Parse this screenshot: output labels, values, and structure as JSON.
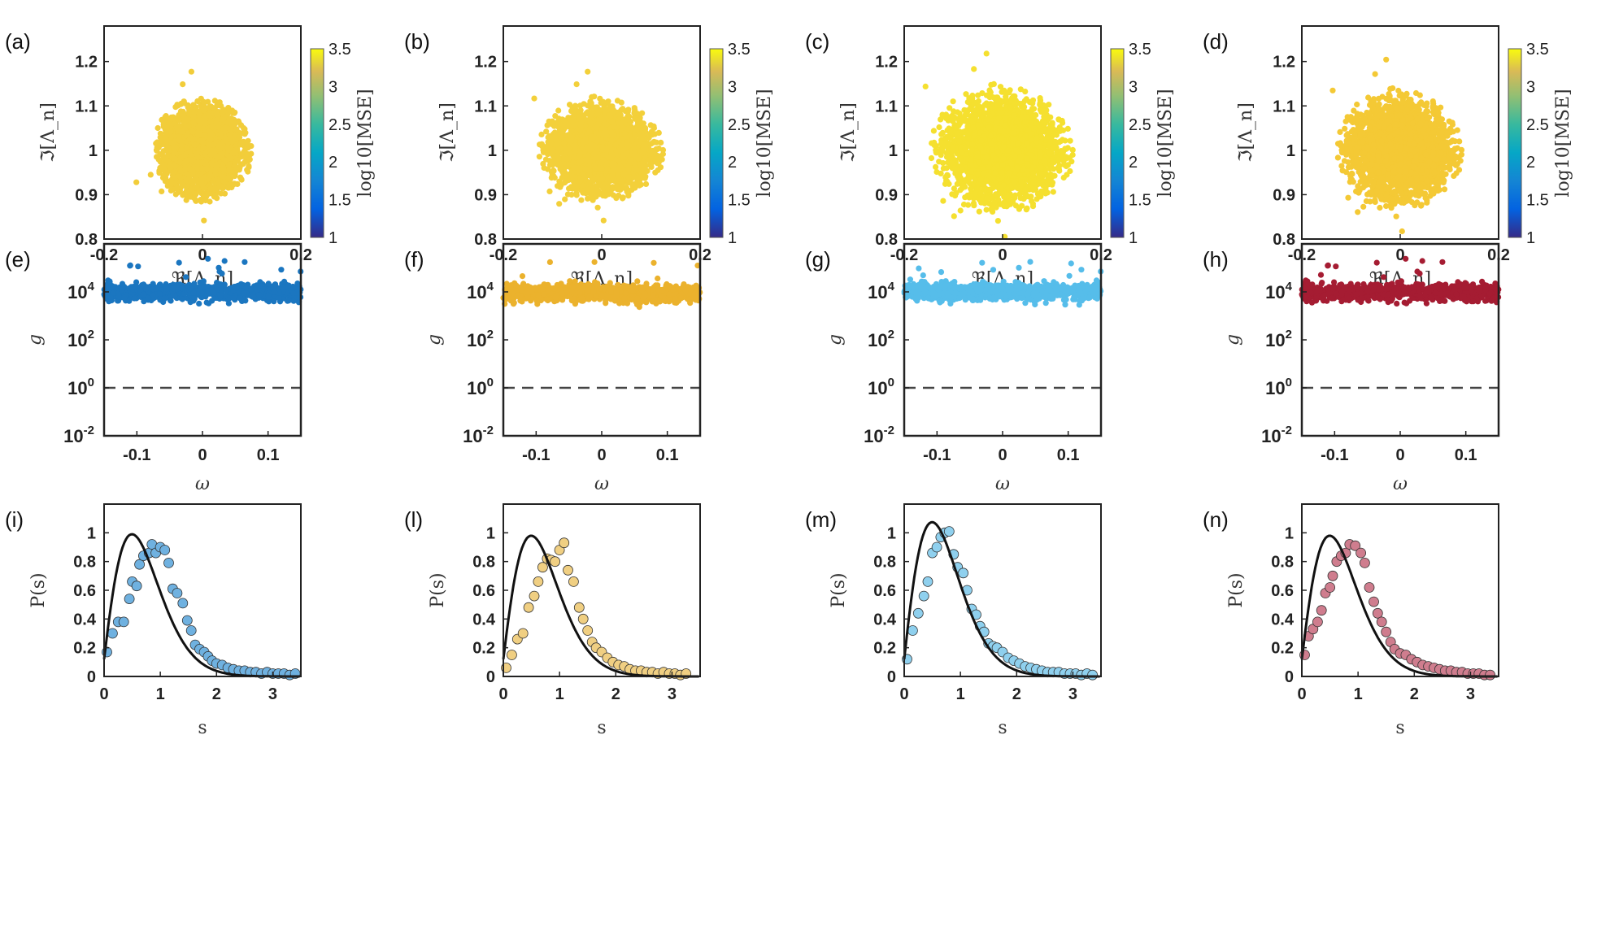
{
  "chart_data": [
    {
      "id": "a",
      "type": "scatter",
      "panel_label": "(a)",
      "xlabel": "ℜ[Λ_n]",
      "ylabel": "ℑ[Λ_n]",
      "xlim": [
        -0.2,
        0.2
      ],
      "ylim": [
        0.8,
        1.28
      ],
      "xticks": [
        "-0.2",
        "0",
        "0.2"
      ],
      "yticks": [
        "0.8",
        "0.9",
        "1",
        "1.1",
        "1.2"
      ],
      "cloud": {
        "cx": 0.0,
        "cy": 1.0,
        "rx": 0.11,
        "ry": 0.13,
        "color": "#f2cd3a"
      },
      "colorbar": {
        "label": "log10[MSE]",
        "range": [
          1,
          3.5
        ],
        "ticks": [
          "1",
          "1.5",
          "2",
          "2.5",
          "3",
          "3.5"
        ]
      }
    },
    {
      "id": "b",
      "type": "scatter",
      "panel_label": "(b)",
      "xlabel": "ℜ[Λ_n]",
      "ylabel": "ℑ[Λ_n]",
      "xlim": [
        -0.2,
        0.2
      ],
      "ylim": [
        0.8,
        1.28
      ],
      "xticks": [
        "-0.2",
        "0",
        "0.2"
      ],
      "yticks": [
        "0.8",
        "0.9",
        "1",
        "1.1",
        "1.2"
      ],
      "cloud": {
        "cx": 0.0,
        "cy": 1.0,
        "rx": 0.14,
        "ry": 0.13,
        "color": "#f3d03a"
      },
      "colorbar": {
        "label": "log10[MSE]",
        "range": [
          1,
          3.5
        ],
        "ticks": [
          "1",
          "1.5",
          "2",
          "2.5",
          "3",
          "3.5"
        ]
      }
    },
    {
      "id": "c",
      "type": "scatter",
      "panel_label": "(c)",
      "xlabel": "ℜ[Λ_n]",
      "ylabel": "ℑ[Λ_n]",
      "xlim": [
        -0.2,
        0.2
      ],
      "ylim": [
        0.8,
        1.28
      ],
      "xticks": [
        "-0.2",
        "0",
        "0.2"
      ],
      "yticks": [
        "0.8",
        "0.9",
        "1",
        "1.1",
        "1.2"
      ],
      "cloud": {
        "cx": 0.0,
        "cy": 1.0,
        "rx": 0.16,
        "ry": 0.16,
        "color": "#f5e02f"
      },
      "colorbar": {
        "label": "log10[MSE]",
        "range": [
          1,
          3.5
        ],
        "ticks": [
          "1",
          "1.5",
          "2",
          "2.5",
          "3",
          "3.5"
        ]
      }
    },
    {
      "id": "d",
      "type": "scatter",
      "panel_label": "(d)",
      "xlabel": "ℜ[Λ_n]",
      "ylabel": "ℑ[Λ_n]",
      "xlim": [
        -0.2,
        0.2
      ],
      "ylim": [
        0.8,
        1.28
      ],
      "xticks": [
        "-0.2",
        "0",
        "0.2"
      ],
      "yticks": [
        "0.8",
        "0.9",
        "1",
        "1.1",
        "1.2"
      ],
      "cloud": {
        "cx": 0.0,
        "cy": 1.0,
        "rx": 0.14,
        "ry": 0.15,
        "color": "#f4c935"
      },
      "colorbar": {
        "label": "log10[MSE]",
        "range": [
          1,
          3.5
        ],
        "ticks": [
          "1",
          "1.5",
          "2",
          "2.5",
          "3",
          "3.5"
        ]
      }
    },
    {
      "id": "e",
      "type": "scatter",
      "panel_label": "(e)",
      "xlabel": "ω",
      "ylabel": "g",
      "xlim": [
        -0.15,
        0.15
      ],
      "ylim_log10": [
        -2,
        6
      ],
      "xticks": [
        "-0.1",
        "0",
        "0.1"
      ],
      "yticks": [
        -2,
        0,
        2,
        4
      ],
      "band": {
        "center_log10": 4.0,
        "spread_log10": 0.35,
        "color": "#1b76c0"
      },
      "reference_line": {
        "y": 1,
        "style": "dashed"
      }
    },
    {
      "id": "f",
      "type": "scatter",
      "panel_label": "(f)",
      "xlabel": "ω",
      "ylabel": "g",
      "xlim": [
        -0.15,
        0.15
      ],
      "ylim_log10": [
        -2,
        6
      ],
      "xticks": [
        "-0.1",
        "0",
        "0.1"
      ],
      "yticks": [
        -2,
        0,
        2,
        4
      ],
      "band": {
        "center_log10": 3.95,
        "spread_log10": 0.35,
        "color": "#ebb22d"
      },
      "reference_line": {
        "y": 1,
        "style": "dashed"
      }
    },
    {
      "id": "g",
      "type": "scatter",
      "panel_label": "(g)",
      "xlabel": "ω",
      "ylabel": "g",
      "xlim": [
        -0.15,
        0.15
      ],
      "ylim_log10": [
        -2,
        6
      ],
      "xticks": [
        "-0.1",
        "0",
        "0.1"
      ],
      "yticks": [
        -2,
        0,
        2,
        4
      ],
      "band": {
        "center_log10": 4.0,
        "spread_log10": 0.35,
        "color": "#56bdea"
      },
      "reference_line": {
        "y": 1,
        "style": "dashed"
      }
    },
    {
      "id": "h",
      "type": "scatter",
      "panel_label": "(h)",
      "xlabel": "ω",
      "ylabel": "g",
      "xlim": [
        -0.15,
        0.15
      ],
      "ylim_log10": [
        -2,
        6
      ],
      "xticks": [
        "-0.1",
        "0",
        "0.1"
      ],
      "yticks": [
        -2,
        0,
        2,
        4
      ],
      "band": {
        "center_log10": 4.0,
        "spread_log10": 0.35,
        "color": "#a51c32"
      },
      "reference_line": {
        "y": 1,
        "style": "dashed"
      }
    },
    {
      "id": "i",
      "type": "scatter",
      "panel_label": "(i)",
      "xlabel": "s",
      "ylabel": "P(s)",
      "xlim": [
        0,
        3.5
      ],
      "ylim": [
        0,
        1.2
      ],
      "xticks": [
        "0",
        "1",
        "2",
        "3"
      ],
      "yticks": [
        "0",
        "0.2",
        "0.4",
        "0.6",
        "0.8",
        "1"
      ],
      "color": "#6fb1e0",
      "curve_peak": 0.94,
      "points": [
        [
          0.05,
          0.17
        ],
        [
          0.15,
          0.3
        ],
        [
          0.25,
          0.38
        ],
        [
          0.35,
          0.38
        ],
        [
          0.45,
          0.54
        ],
        [
          0.5,
          0.66
        ],
        [
          0.58,
          0.63
        ],
        [
          0.63,
          0.78
        ],
        [
          0.7,
          0.84
        ],
        [
          0.8,
          0.86
        ],
        [
          0.85,
          0.92
        ],
        [
          0.92,
          0.86
        ],
        [
          1.0,
          0.9
        ],
        [
          1.08,
          0.88
        ],
        [
          1.15,
          0.79
        ],
        [
          1.22,
          0.61
        ],
        [
          1.3,
          0.58
        ],
        [
          1.4,
          0.51
        ],
        [
          1.48,
          0.39
        ],
        [
          1.55,
          0.32
        ],
        [
          1.62,
          0.22
        ],
        [
          1.7,
          0.19
        ],
        [
          1.78,
          0.17
        ],
        [
          1.85,
          0.14
        ],
        [
          1.92,
          0.11
        ],
        [
          2.0,
          0.09
        ],
        [
          2.1,
          0.08
        ],
        [
          2.2,
          0.06
        ],
        [
          2.3,
          0.05
        ],
        [
          2.4,
          0.04
        ],
        [
          2.5,
          0.04
        ],
        [
          2.6,
          0.03
        ],
        [
          2.7,
          0.03
        ],
        [
          2.8,
          0.02
        ],
        [
          2.9,
          0.03
        ],
        [
          3.0,
          0.02
        ],
        [
          3.1,
          0.02
        ],
        [
          3.2,
          0.02
        ],
        [
          3.3,
          0.01
        ],
        [
          3.4,
          0.02
        ]
      ]
    },
    {
      "id": "l",
      "type": "scatter",
      "panel_label": "(l)",
      "xlabel": "s",
      "ylabel": "P(s)",
      "xlim": [
        0,
        3.5
      ],
      "ylim": [
        0,
        1.2
      ],
      "xticks": [
        "0",
        "1",
        "2",
        "3"
      ],
      "yticks": [
        "0",
        "0.2",
        "0.4",
        "0.6",
        "0.8",
        "1"
      ],
      "color": "#f0cf82",
      "curve_peak": 0.93,
      "points": [
        [
          0.05,
          0.06
        ],
        [
          0.15,
          0.15
        ],
        [
          0.25,
          0.26
        ],
        [
          0.35,
          0.3
        ],
        [
          0.45,
          0.48
        ],
        [
          0.55,
          0.56
        ],
        [
          0.62,
          0.66
        ],
        [
          0.7,
          0.76
        ],
        [
          0.78,
          0.82
        ],
        [
          0.85,
          0.81
        ],
        [
          0.92,
          0.8
        ],
        [
          1.0,
          0.88
        ],
        [
          1.08,
          0.93
        ],
        [
          1.15,
          0.74
        ],
        [
          1.25,
          0.66
        ],
        [
          1.35,
          0.48
        ],
        [
          1.42,
          0.4
        ],
        [
          1.5,
          0.32
        ],
        [
          1.58,
          0.24
        ],
        [
          1.65,
          0.2
        ],
        [
          1.75,
          0.17
        ],
        [
          1.85,
          0.13
        ],
        [
          1.95,
          0.1
        ],
        [
          2.05,
          0.08
        ],
        [
          2.15,
          0.07
        ],
        [
          2.25,
          0.05
        ],
        [
          2.35,
          0.04
        ],
        [
          2.45,
          0.04
        ],
        [
          2.55,
          0.03
        ],
        [
          2.65,
          0.03
        ],
        [
          2.75,
          0.02
        ],
        [
          2.85,
          0.03
        ],
        [
          2.95,
          0.02
        ],
        [
          3.05,
          0.02
        ],
        [
          3.15,
          0.01
        ],
        [
          3.25,
          0.02
        ]
      ]
    },
    {
      "id": "m",
      "type": "scatter",
      "panel_label": "(m)",
      "xlabel": "s",
      "ylabel": "P(s)",
      "xlim": [
        0,
        3.5
      ],
      "ylim": [
        0,
        1.2
      ],
      "xticks": [
        "0",
        "1",
        "2",
        "3"
      ],
      "yticks": [
        "0",
        "0.2",
        "0.4",
        "0.6",
        "0.8",
        "1"
      ],
      "color": "#8fd0ee",
      "curve_peak": 1.02,
      "points": [
        [
          0.05,
          0.12
        ],
        [
          0.15,
          0.32
        ],
        [
          0.25,
          0.44
        ],
        [
          0.35,
          0.56
        ],
        [
          0.42,
          0.66
        ],
        [
          0.5,
          0.86
        ],
        [
          0.58,
          0.9
        ],
        [
          0.65,
          0.97
        ],
        [
          0.72,
          1.0
        ],
        [
          0.8,
          1.01
        ],
        [
          0.88,
          0.85
        ],
        [
          0.95,
          0.76
        ],
        [
          1.05,
          0.72
        ],
        [
          1.12,
          0.6
        ],
        [
          1.2,
          0.47
        ],
        [
          1.28,
          0.43
        ],
        [
          1.35,
          0.35
        ],
        [
          1.42,
          0.31
        ],
        [
          1.5,
          0.23
        ],
        [
          1.58,
          0.21
        ],
        [
          1.65,
          0.2
        ],
        [
          1.75,
          0.17
        ],
        [
          1.85,
          0.13
        ],
        [
          1.95,
          0.11
        ],
        [
          2.05,
          0.09
        ],
        [
          2.15,
          0.07
        ],
        [
          2.25,
          0.06
        ],
        [
          2.35,
          0.05
        ],
        [
          2.45,
          0.04
        ],
        [
          2.55,
          0.03
        ],
        [
          2.65,
          0.03
        ],
        [
          2.75,
          0.03
        ],
        [
          2.85,
          0.02
        ],
        [
          2.95,
          0.02
        ],
        [
          3.05,
          0.02
        ],
        [
          3.15,
          0.01
        ],
        [
          3.25,
          0.02
        ],
        [
          3.35,
          0.01
        ]
      ]
    },
    {
      "id": "n",
      "type": "scatter",
      "panel_label": "(n)",
      "xlabel": "s",
      "ylabel": "P(s)",
      "xlim": [
        0,
        3.5
      ],
      "ylim": [
        0,
        1.2
      ],
      "xticks": [
        "0",
        "1",
        "2",
        "3"
      ],
      "yticks": [
        "0",
        "0.2",
        "0.4",
        "0.6",
        "0.8",
        "1"
      ],
      "color": "#cf7d8e",
      "curve_peak": 0.93,
      "points": [
        [
          0.05,
          0.15
        ],
        [
          0.12,
          0.28
        ],
        [
          0.2,
          0.33
        ],
        [
          0.28,
          0.38
        ],
        [
          0.35,
          0.46
        ],
        [
          0.42,
          0.58
        ],
        [
          0.5,
          0.62
        ],
        [
          0.55,
          0.7
        ],
        [
          0.62,
          0.8
        ],
        [
          0.7,
          0.84
        ],
        [
          0.78,
          0.86
        ],
        [
          0.85,
          0.92
        ],
        [
          0.95,
          0.91
        ],
        [
          1.05,
          0.86
        ],
        [
          1.12,
          0.79
        ],
        [
          1.2,
          0.62
        ],
        [
          1.28,
          0.52
        ],
        [
          1.35,
          0.44
        ],
        [
          1.42,
          0.38
        ],
        [
          1.5,
          0.31
        ],
        [
          1.58,
          0.24
        ],
        [
          1.65,
          0.19
        ],
        [
          1.75,
          0.16
        ],
        [
          1.85,
          0.15
        ],
        [
          1.95,
          0.12
        ],
        [
          2.05,
          0.1
        ],
        [
          2.15,
          0.08
        ],
        [
          2.25,
          0.07
        ],
        [
          2.35,
          0.06
        ],
        [
          2.45,
          0.05
        ],
        [
          2.55,
          0.04
        ],
        [
          2.65,
          0.04
        ],
        [
          2.75,
          0.03
        ],
        [
          2.85,
          0.03
        ],
        [
          2.95,
          0.02
        ],
        [
          3.05,
          0.02
        ],
        [
          3.15,
          0.02
        ],
        [
          3.25,
          0.01
        ],
        [
          3.35,
          0.01
        ]
      ]
    }
  ]
}
